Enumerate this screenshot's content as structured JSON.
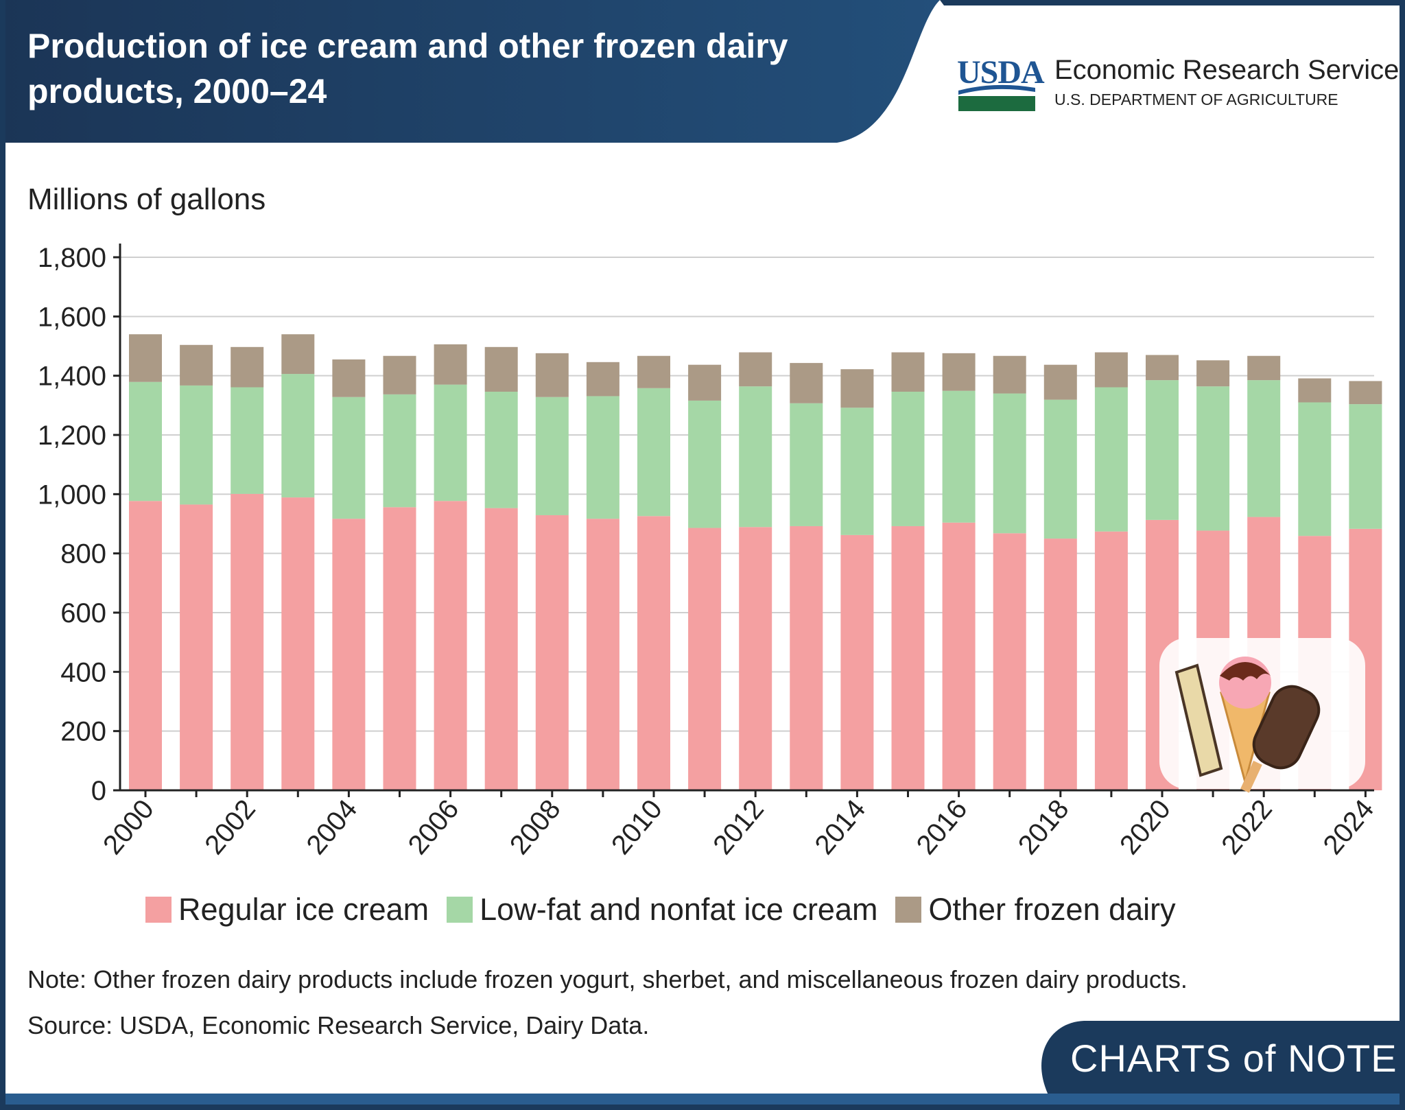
{
  "header": {
    "title": "Production of ice cream and other frozen dairy products, 2000–24",
    "logo_usda": "USDA",
    "logo_agency": "Economic Research Service",
    "logo_department": "U.S. DEPARTMENT OF AGRICULTURE"
  },
  "footer": {
    "note": "Note: Other frozen dairy products include frozen yogurt, sherbet, and miscellaneous frozen dairy products.",
    "source": "Source: USDA, Economic Research Service, Dairy Data.",
    "brand": "CHARTS of NOTE"
  },
  "colors": {
    "regular": "#f4a0a1",
    "lowfat": "#a5d7a6",
    "other": "#ab9a86",
    "header": "#1d3f63"
  },
  "chart_data": {
    "type": "bar",
    "stacked": true,
    "title": "Production of ice cream and other frozen dairy products, 2000–24",
    "ylabel": "Millions of gallons",
    "xlabel": "",
    "ylim": [
      0,
      1800
    ],
    "yticks": [
      "0",
      "200",
      "400",
      "600",
      "800",
      "1,000",
      "1,200",
      "1,400",
      "1,600",
      "1,800"
    ],
    "grid": true,
    "legend_position": "bottom",
    "categories": [
      "2000",
      "2001",
      "2002",
      "2003",
      "2004",
      "2005",
      "2006",
      "2007",
      "2008",
      "2009",
      "2010",
      "2011",
      "2012",
      "2013",
      "2014",
      "2015",
      "2016",
      "2017",
      "2018",
      "2019",
      "2020",
      "2021",
      "2022",
      "2023",
      "2024"
    ],
    "xtick_labels": [
      "2000",
      "2002",
      "2004",
      "2006",
      "2008",
      "2010",
      "2012",
      "2014",
      "2016",
      "2018",
      "2020",
      "2022",
      "2024"
    ],
    "series": [
      {
        "name": "Regular ice cream",
        "values": [
          977,
          965,
          1001,
          989,
          917,
          956,
          977,
          953,
          929,
          917,
          926,
          886,
          889,
          892,
          862,
          892,
          904,
          868,
          850,
          874,
          913,
          877,
          923,
          859,
          883
        ]
      },
      {
        "name": "Low-fat and nonfat ice cream",
        "values": [
          402,
          402,
          360,
          417,
          411,
          381,
          393,
          393,
          399,
          414,
          432,
          430,
          475,
          415,
          430,
          454,
          445,
          472,
          469,
          487,
          472,
          487,
          462,
          451,
          421
        ]
      },
      {
        "name": "Other frozen dairy",
        "values": [
          161,
          137,
          136,
          134,
          127,
          130,
          136,
          151,
          148,
          115,
          109,
          121,
          115,
          136,
          130,
          133,
          127,
          127,
          118,
          118,
          85,
          88,
          82,
          81,
          78
        ]
      }
    ]
  }
}
